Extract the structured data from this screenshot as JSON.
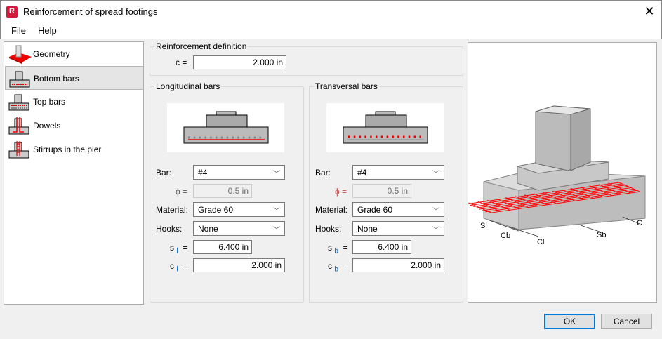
{
  "window": {
    "title": "Reinforcement of spread footings",
    "app_icon": "R",
    "close": "✕"
  },
  "menu": [
    "File",
    "Help"
  ],
  "sidebar": {
    "items": [
      {
        "label": "Geometry",
        "icon": "geometry-icon"
      },
      {
        "label": "Bottom bars",
        "icon": "bottom-bars-icon",
        "selected": true
      },
      {
        "label": "Top bars",
        "icon": "top-bars-icon"
      },
      {
        "label": "Dowels",
        "icon": "dowels-icon"
      },
      {
        "label": "Stirrups in the pier",
        "icon": "stirrups-icon"
      }
    ]
  },
  "definition": {
    "title": "Reinforcement definition",
    "c_label": "c =",
    "c_value": "2.000 in"
  },
  "longitudinal": {
    "title": "Longitudinal bars",
    "bar_label": "Bar:",
    "bar": "#4",
    "phi_label": "ϕ =",
    "phi": "0.5 in",
    "material_label": "Material:",
    "material": "Grade 60",
    "hooks_label": "Hooks:",
    "hooks": "None",
    "s_label": "s",
    "s_sub": "l",
    "eq": "=",
    "s": "6.400 in",
    "c_label": "c",
    "c_sub": "l",
    "c": "2.000 in"
  },
  "transversal": {
    "title": "Transversal bars",
    "bar_label": "Bar:",
    "bar": "#4",
    "phi_label": "ϕ =",
    "phi": "0.5 in",
    "material_label": "Material:",
    "material": "Grade 60",
    "hooks_label": "Hooks:",
    "hooks": "None",
    "s_label": "s",
    "s_sub": "b",
    "eq": "=",
    "s": "6.400 in",
    "c_label": "c",
    "c_sub": "b",
    "c": "2.000 in"
  },
  "preview": {
    "labels": {
      "sl": "Sl",
      "cb": "Cb",
      "cl": "Cl",
      "sb": "Sb",
      "c": "C"
    }
  },
  "buttons": {
    "ok": "OK",
    "cancel": "Cancel"
  },
  "colors": {
    "accent": "#0078d7",
    "rebar": "#ff0000",
    "brand": "#d01b3a"
  }
}
